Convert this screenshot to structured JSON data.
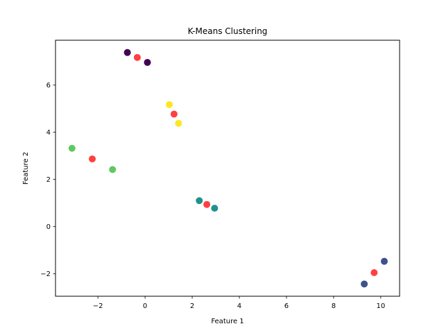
{
  "chart_data": {
    "type": "scatter",
    "title": "K-Means Clustering",
    "xlabel": "Feature 1",
    "ylabel": "Feature 2",
    "xlim": [
      -3.8,
      10.8
    ],
    "ylim": [
      -2.95,
      7.9
    ],
    "xticks": [
      -2,
      0,
      2,
      4,
      6,
      8,
      10
    ],
    "yticks": [
      -2,
      0,
      2,
      4,
      6
    ],
    "grid": false,
    "legend": "none",
    "series": [
      {
        "color": "#440154",
        "points": [
          [
            -0.75,
            7.38
          ],
          [
            0.1,
            6.96
          ]
        ]
      },
      {
        "color": "#3b528b",
        "points": [
          [
            10.15,
            -1.47
          ],
          [
            9.3,
            -2.43
          ]
        ]
      },
      {
        "color": "#21918c",
        "points": [
          [
            2.3,
            1.1
          ],
          [
            2.95,
            0.78
          ]
        ]
      },
      {
        "color": "#5ec962",
        "points": [
          [
            -3.1,
            3.32
          ],
          [
            -1.38,
            2.42
          ]
        ]
      },
      {
        "color": "#fde725",
        "points": [
          [
            1.03,
            5.17
          ],
          [
            1.42,
            4.38
          ]
        ]
      },
      {
        "color": "#ff0000",
        "opacity": 0.75,
        "points": [
          [
            -0.33,
            7.17
          ],
          [
            9.72,
            -1.95
          ],
          [
            2.62,
            0.94
          ],
          [
            -2.24,
            2.87
          ],
          [
            1.23,
            4.77
          ]
        ]
      }
    ]
  }
}
